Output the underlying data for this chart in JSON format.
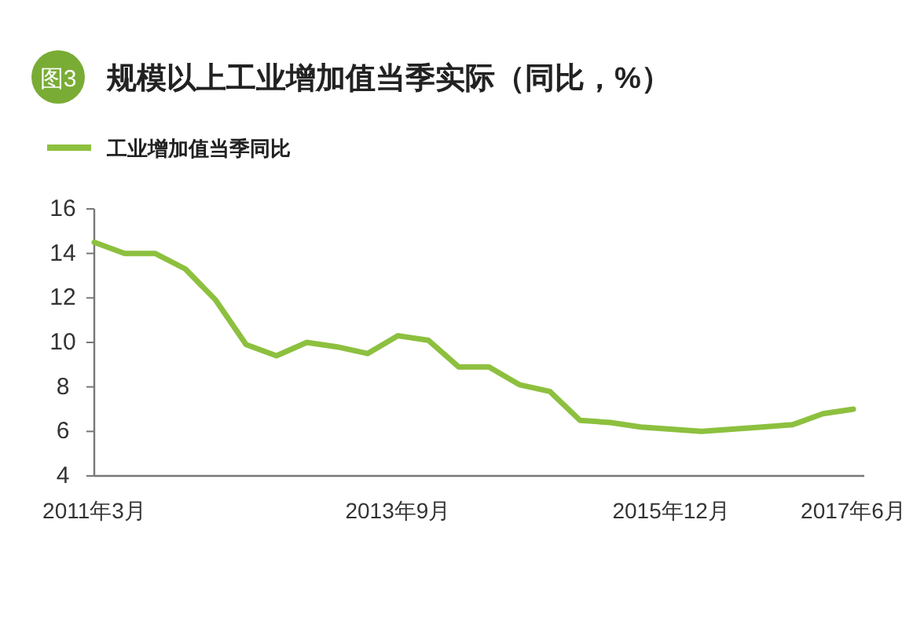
{
  "chart_data": {
    "type": "line",
    "title": "规模以上工业增加值当季实际（同比，%）",
    "annotations": [
      "图3"
    ],
    "categories": [
      "2011年3月",
      null,
      null,
      null,
      null,
      null,
      null,
      null,
      null,
      null,
      "2013年9月",
      null,
      null,
      null,
      null,
      null,
      null,
      null,
      null,
      "2015年12月",
      null,
      null,
      null,
      null,
      null,
      "2017年6月"
    ],
    "series": [
      {
        "name": "工业增加值当季同比",
        "color": "#8dc03f",
        "values": [
          14.5,
          14.0,
          14.0,
          13.3,
          11.9,
          9.9,
          9.4,
          10.0,
          9.8,
          9.5,
          10.3,
          10.1,
          8.9,
          8.9,
          8.1,
          7.8,
          6.5,
          6.4,
          6.2,
          6.1,
          6.0,
          6.1,
          6.2,
          6.3,
          6.8,
          7.0
        ]
      }
    ],
    "ylim": [
      4,
      16
    ],
    "yticks": [
      4,
      6,
      8,
      10,
      12,
      14,
      16
    ],
    "legend": "top left",
    "grid": false,
    "marker": "none",
    "line_style": "solid"
  }
}
